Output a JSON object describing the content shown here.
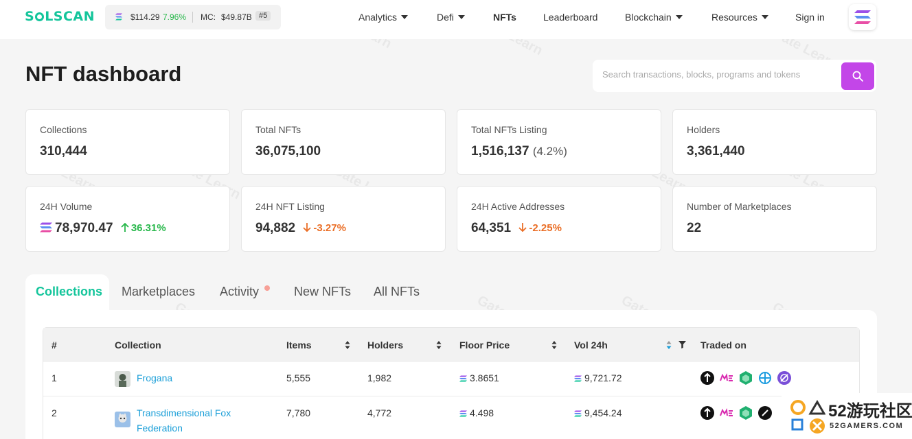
{
  "header": {
    "logo": "SOLSCAN",
    "sol_price": "$114.29",
    "sol_change": "7.96%",
    "mc_label": "MC:",
    "mc_value": "$49.87B",
    "rank": "#5",
    "nav": [
      {
        "label": "Analytics",
        "dropdown": true
      },
      {
        "label": "Defi",
        "dropdown": true
      },
      {
        "label": "NFTs",
        "dropdown": false,
        "active": true
      },
      {
        "label": "Leaderboard",
        "dropdown": false
      },
      {
        "label": "Blockchain",
        "dropdown": true
      },
      {
        "label": "Resources",
        "dropdown": true
      },
      {
        "label": "Sign in",
        "dropdown": false
      }
    ]
  },
  "page": {
    "title": "NFT dashboard",
    "search_placeholder": "Search transactions, blocks, programs and tokens"
  },
  "stats": [
    {
      "label": "Collections",
      "value": "310,444"
    },
    {
      "label": "Total NFTs",
      "value": "36,075,100"
    },
    {
      "label": "Total NFTs Listing",
      "value": "1,516,137",
      "sub": "(4.2%)"
    },
    {
      "label": "Holders",
      "value": "3,361,440"
    },
    {
      "label": "24H Volume",
      "value": "78,970.47",
      "change": "36.31%",
      "direction": "up"
    },
    {
      "label": "24H NFT Listing",
      "value": "94,882",
      "change": "-3.27%",
      "direction": "down"
    },
    {
      "label": "24H Active Addresses",
      "value": "64,351",
      "change": "-2.25%",
      "direction": "down"
    },
    {
      "label": "Number of Marketplaces",
      "value": "22"
    }
  ],
  "tabs": [
    {
      "label": "Collections",
      "active": true
    },
    {
      "label": "Marketplaces"
    },
    {
      "label": "Activity",
      "badge": true
    },
    {
      "label": "New NFTs"
    },
    {
      "label": "All NFTs"
    }
  ],
  "table": {
    "columns": [
      "#",
      "Collection",
      "Items",
      "Holders",
      "Floor Price",
      "Vol 24h",
      "Traded on"
    ],
    "rows": [
      {
        "rank": "1",
        "name": "Frogana",
        "items": "5,555",
        "holders": "1,982",
        "floor": "3.8651",
        "vol": "9,721.72"
      },
      {
        "rank": "2",
        "name_line1": "Transdimensional Fox",
        "name_line2": "Federation",
        "items": "7,780",
        "holders": "4,772",
        "floor": "4.498",
        "vol": "9,454.24"
      }
    ]
  },
  "watermark": "Gate Learn",
  "corner": {
    "big": "52游玩社区",
    "small": "52GAMERS.COM"
  },
  "colors": {
    "accent": "#14c59b",
    "search": "#c346e8",
    "up": "#29b84c",
    "down": "#ea6e26",
    "link": "#1c9fd8"
  }
}
